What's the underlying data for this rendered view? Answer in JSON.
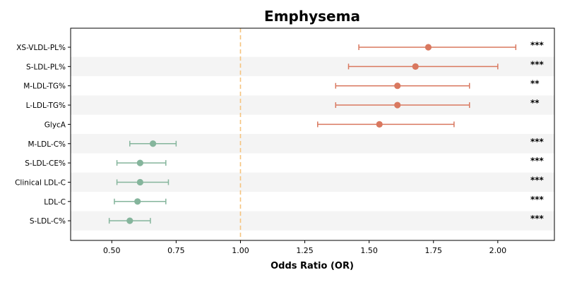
{
  "chart_data": {
    "type": "forest",
    "title": "Emphysema",
    "xlabel": "Odds Ratio (OR)",
    "xlim": [
      0.34,
      2.22
    ],
    "xticks": [
      "0.50",
      "0.75",
      "1.00",
      "1.25",
      "1.50",
      "1.75",
      "2.00"
    ],
    "reference_line": 1.0,
    "colors": {
      "risk": "#d9785f",
      "protective": "#85b59c",
      "reference": "#f5c37e",
      "band": "#f4f4f4"
    },
    "rows": [
      {
        "label": "XS-VLDL-PL%",
        "or": 1.73,
        "lo": 1.46,
        "hi": 2.07,
        "sig": "***",
        "group": "risk"
      },
      {
        "label": "S-LDL-PL%",
        "or": 1.68,
        "lo": 1.42,
        "hi": 2.0,
        "sig": "***",
        "group": "risk"
      },
      {
        "label": "M-LDL-TG%",
        "or": 1.61,
        "lo": 1.37,
        "hi": 1.89,
        "sig": "**",
        "group": "risk"
      },
      {
        "label": "L-LDL-TG%",
        "or": 1.61,
        "lo": 1.37,
        "hi": 1.89,
        "sig": "**",
        "group": "risk"
      },
      {
        "label": "GlycA",
        "or": 1.54,
        "lo": 1.3,
        "hi": 1.83,
        "sig": "",
        "group": "risk"
      },
      {
        "label": "M-LDL-C%",
        "or": 0.66,
        "lo": 0.57,
        "hi": 0.75,
        "sig": "***",
        "group": "protective"
      },
      {
        "label": "S-LDL-CE%",
        "or": 0.61,
        "lo": 0.52,
        "hi": 0.71,
        "sig": "***",
        "group": "protective"
      },
      {
        "label": "Clinical LDL-C",
        "or": 0.61,
        "lo": 0.52,
        "hi": 0.72,
        "sig": "***",
        "group": "protective"
      },
      {
        "label": "LDL-C",
        "or": 0.6,
        "lo": 0.51,
        "hi": 0.71,
        "sig": "***",
        "group": "protective"
      },
      {
        "label": "S-LDL-C%",
        "or": 0.57,
        "lo": 0.49,
        "hi": 0.65,
        "sig": "***",
        "group": "protective"
      }
    ]
  }
}
